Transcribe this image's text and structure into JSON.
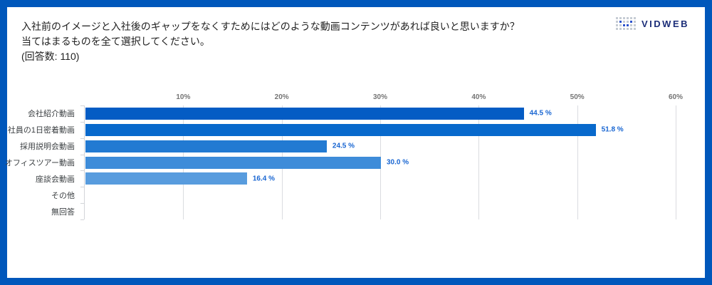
{
  "header": {
    "title_line1": "入社前のイメージと入社後のギャップをなくすためにはどのような動画コンテンツがあれば良いと思いますか？",
    "title_line2": "当てはまるものを全て選択してください。",
    "title_line3": "(回答数: 110)"
  },
  "logo": {
    "text": "VIDWEB",
    "icon": "dot-matrix-v-icon",
    "icon_pattern": [
      [
        0,
        0,
        0,
        0,
        0,
        0
      ],
      [
        0,
        1,
        0,
        0,
        1,
        0
      ],
      [
        0,
        0,
        1,
        1,
        0,
        0
      ],
      [
        0,
        0,
        0,
        0,
        0,
        0
      ]
    ],
    "icon_dot_color": "#2c52cc",
    "icon_grid_color": "#c6ccd4",
    "text_color": "#1b2d78"
  },
  "colors": {
    "frame": "#0057bb",
    "card_background": "#ffffff",
    "gridline": "#dadce0",
    "axis": "#d3d5d9",
    "tick_label": "#757575",
    "category_label": "#3c4043",
    "value_label": "#1966d2"
  },
  "chart_data": {
    "type": "bar",
    "orientation": "horizontal",
    "title": "",
    "xlabel": "",
    "ylabel": "",
    "grid": true,
    "xlim": [
      0,
      60
    ],
    "x_ticks": [
      "10%",
      "20%",
      "30%",
      "40%",
      "50%",
      "60%"
    ],
    "x_tick_values": [
      10,
      20,
      30,
      40,
      50,
      60
    ],
    "categories": [
      "会社紹介動画",
      "社員の1日密着動画",
      "採用説明会動画",
      "オフィスツアー動画",
      "座談会動画",
      "その他",
      "無回答"
    ],
    "values": [
      44.5,
      51.8,
      24.5,
      30.0,
      16.4,
      0,
      0
    ],
    "value_labels": [
      "44.5 %",
      "51.8 %",
      "24.5 %",
      "30.0 %",
      "16.4 %",
      "",
      ""
    ],
    "bar_colors": [
      "#045cc4",
      "#0869cc",
      "#227ad2",
      "#3e8cd9",
      "#589cde",
      null,
      null
    ]
  }
}
